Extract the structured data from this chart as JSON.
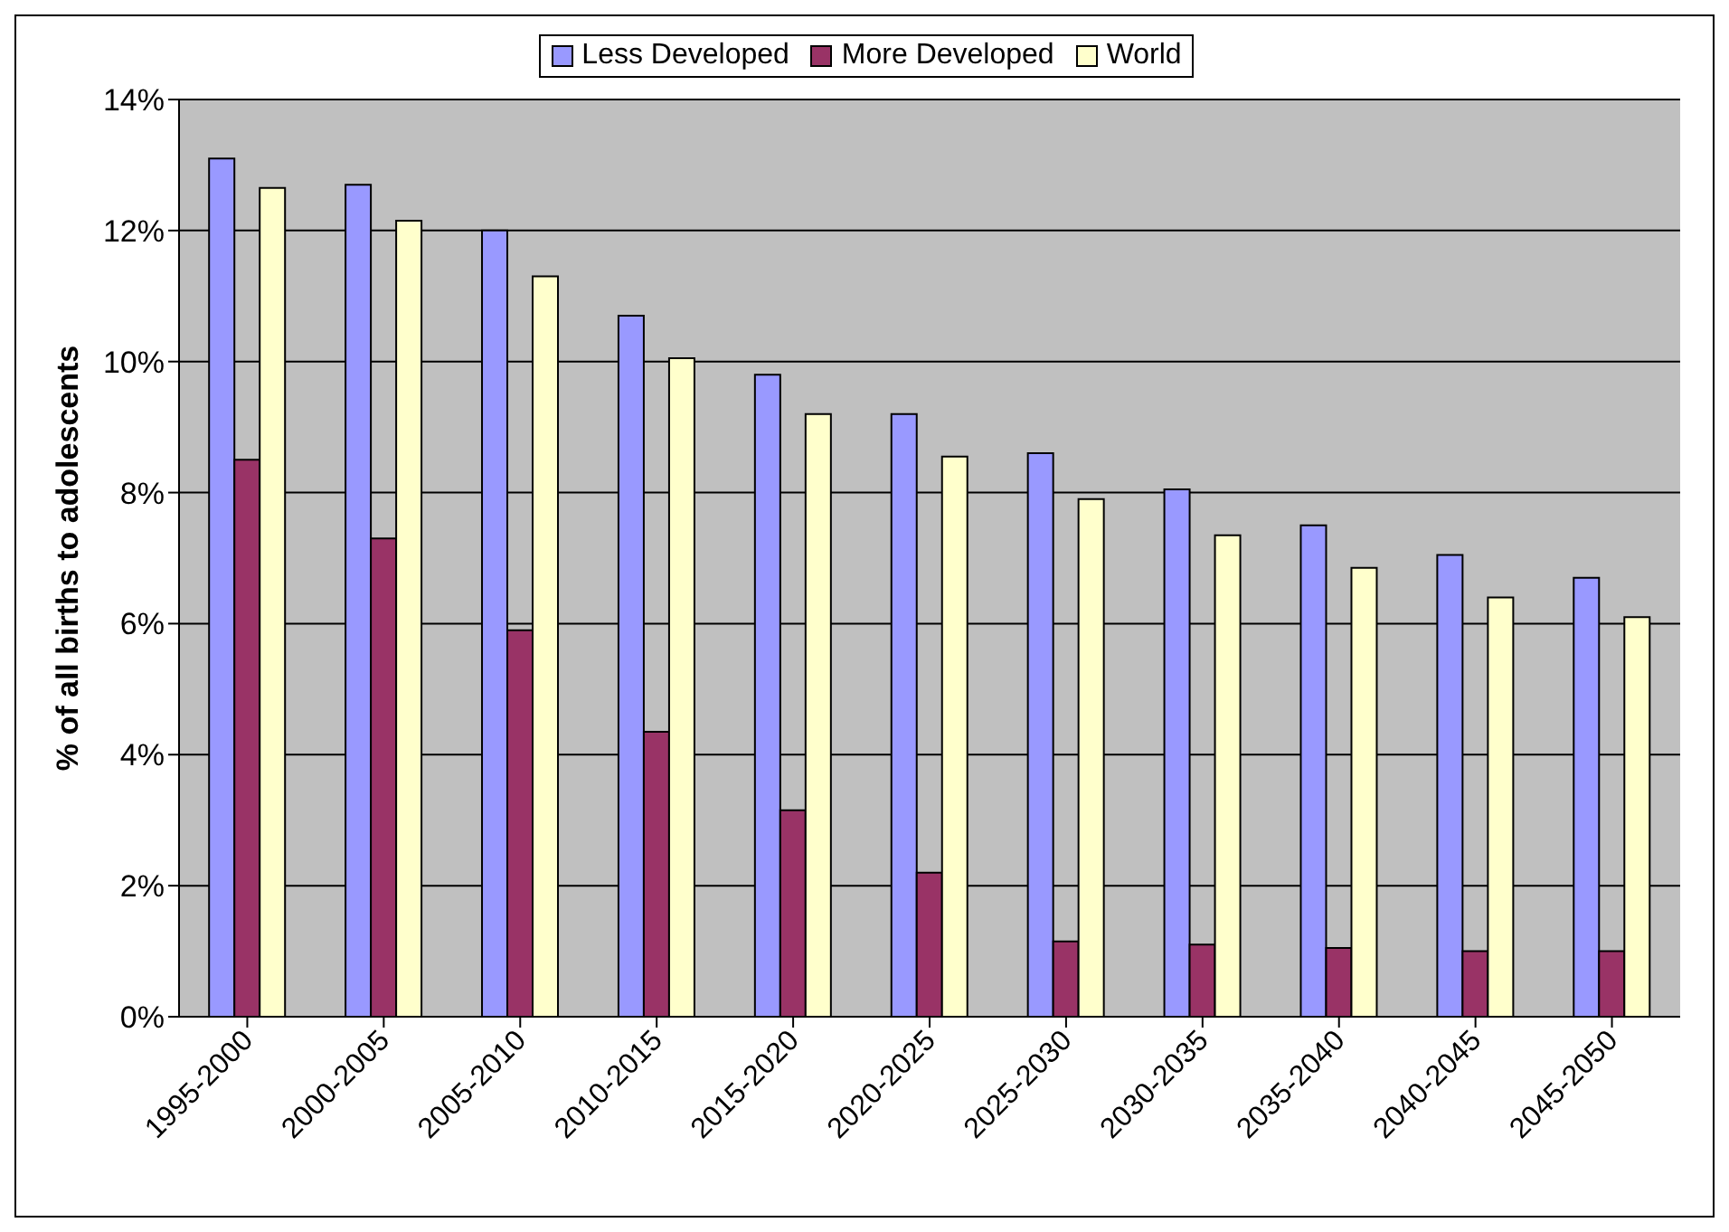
{
  "chart_data": {
    "type": "bar",
    "ylabel": "% of all births to adolescents",
    "categories": [
      "1995-2000",
      "2000-2005",
      "2005-2010",
      "2010-2015",
      "2015-2020",
      "2020-2025",
      "2025-2030",
      "2030-2035",
      "2035-2040",
      "2040-2045",
      "2045-2050"
    ],
    "series": [
      {
        "name": "Less Developed",
        "color": "#9999ff",
        "values": [
          13.1,
          12.7,
          12.0,
          10.7,
          9.8,
          9.2,
          8.6,
          8.05,
          7.5,
          7.05,
          6.7
        ]
      },
      {
        "name": "More Developed",
        "color": "#993366",
        "values": [
          8.5,
          7.3,
          5.9,
          4.35,
          3.15,
          2.2,
          1.15,
          1.1,
          1.05,
          1.0,
          1.0
        ]
      },
      {
        "name": "World",
        "color": "#ffffcc",
        "values": [
          12.65,
          12.15,
          11.3,
          10.05,
          9.2,
          8.55,
          7.9,
          7.35,
          6.85,
          6.4,
          6.1
        ]
      }
    ],
    "ylim": [
      0,
      14
    ],
    "yticks": [
      {
        "value": 0,
        "label": "0%"
      },
      {
        "value": 2,
        "label": "2%"
      },
      {
        "value": 4,
        "label": "4%"
      },
      {
        "value": 6,
        "label": "6%"
      },
      {
        "value": 8,
        "label": "8%"
      },
      {
        "value": 10,
        "label": "10%"
      },
      {
        "value": 12,
        "label": "12%"
      },
      {
        "value": 14,
        "label": "14%"
      }
    ],
    "grid": "y",
    "legend": "top"
  }
}
